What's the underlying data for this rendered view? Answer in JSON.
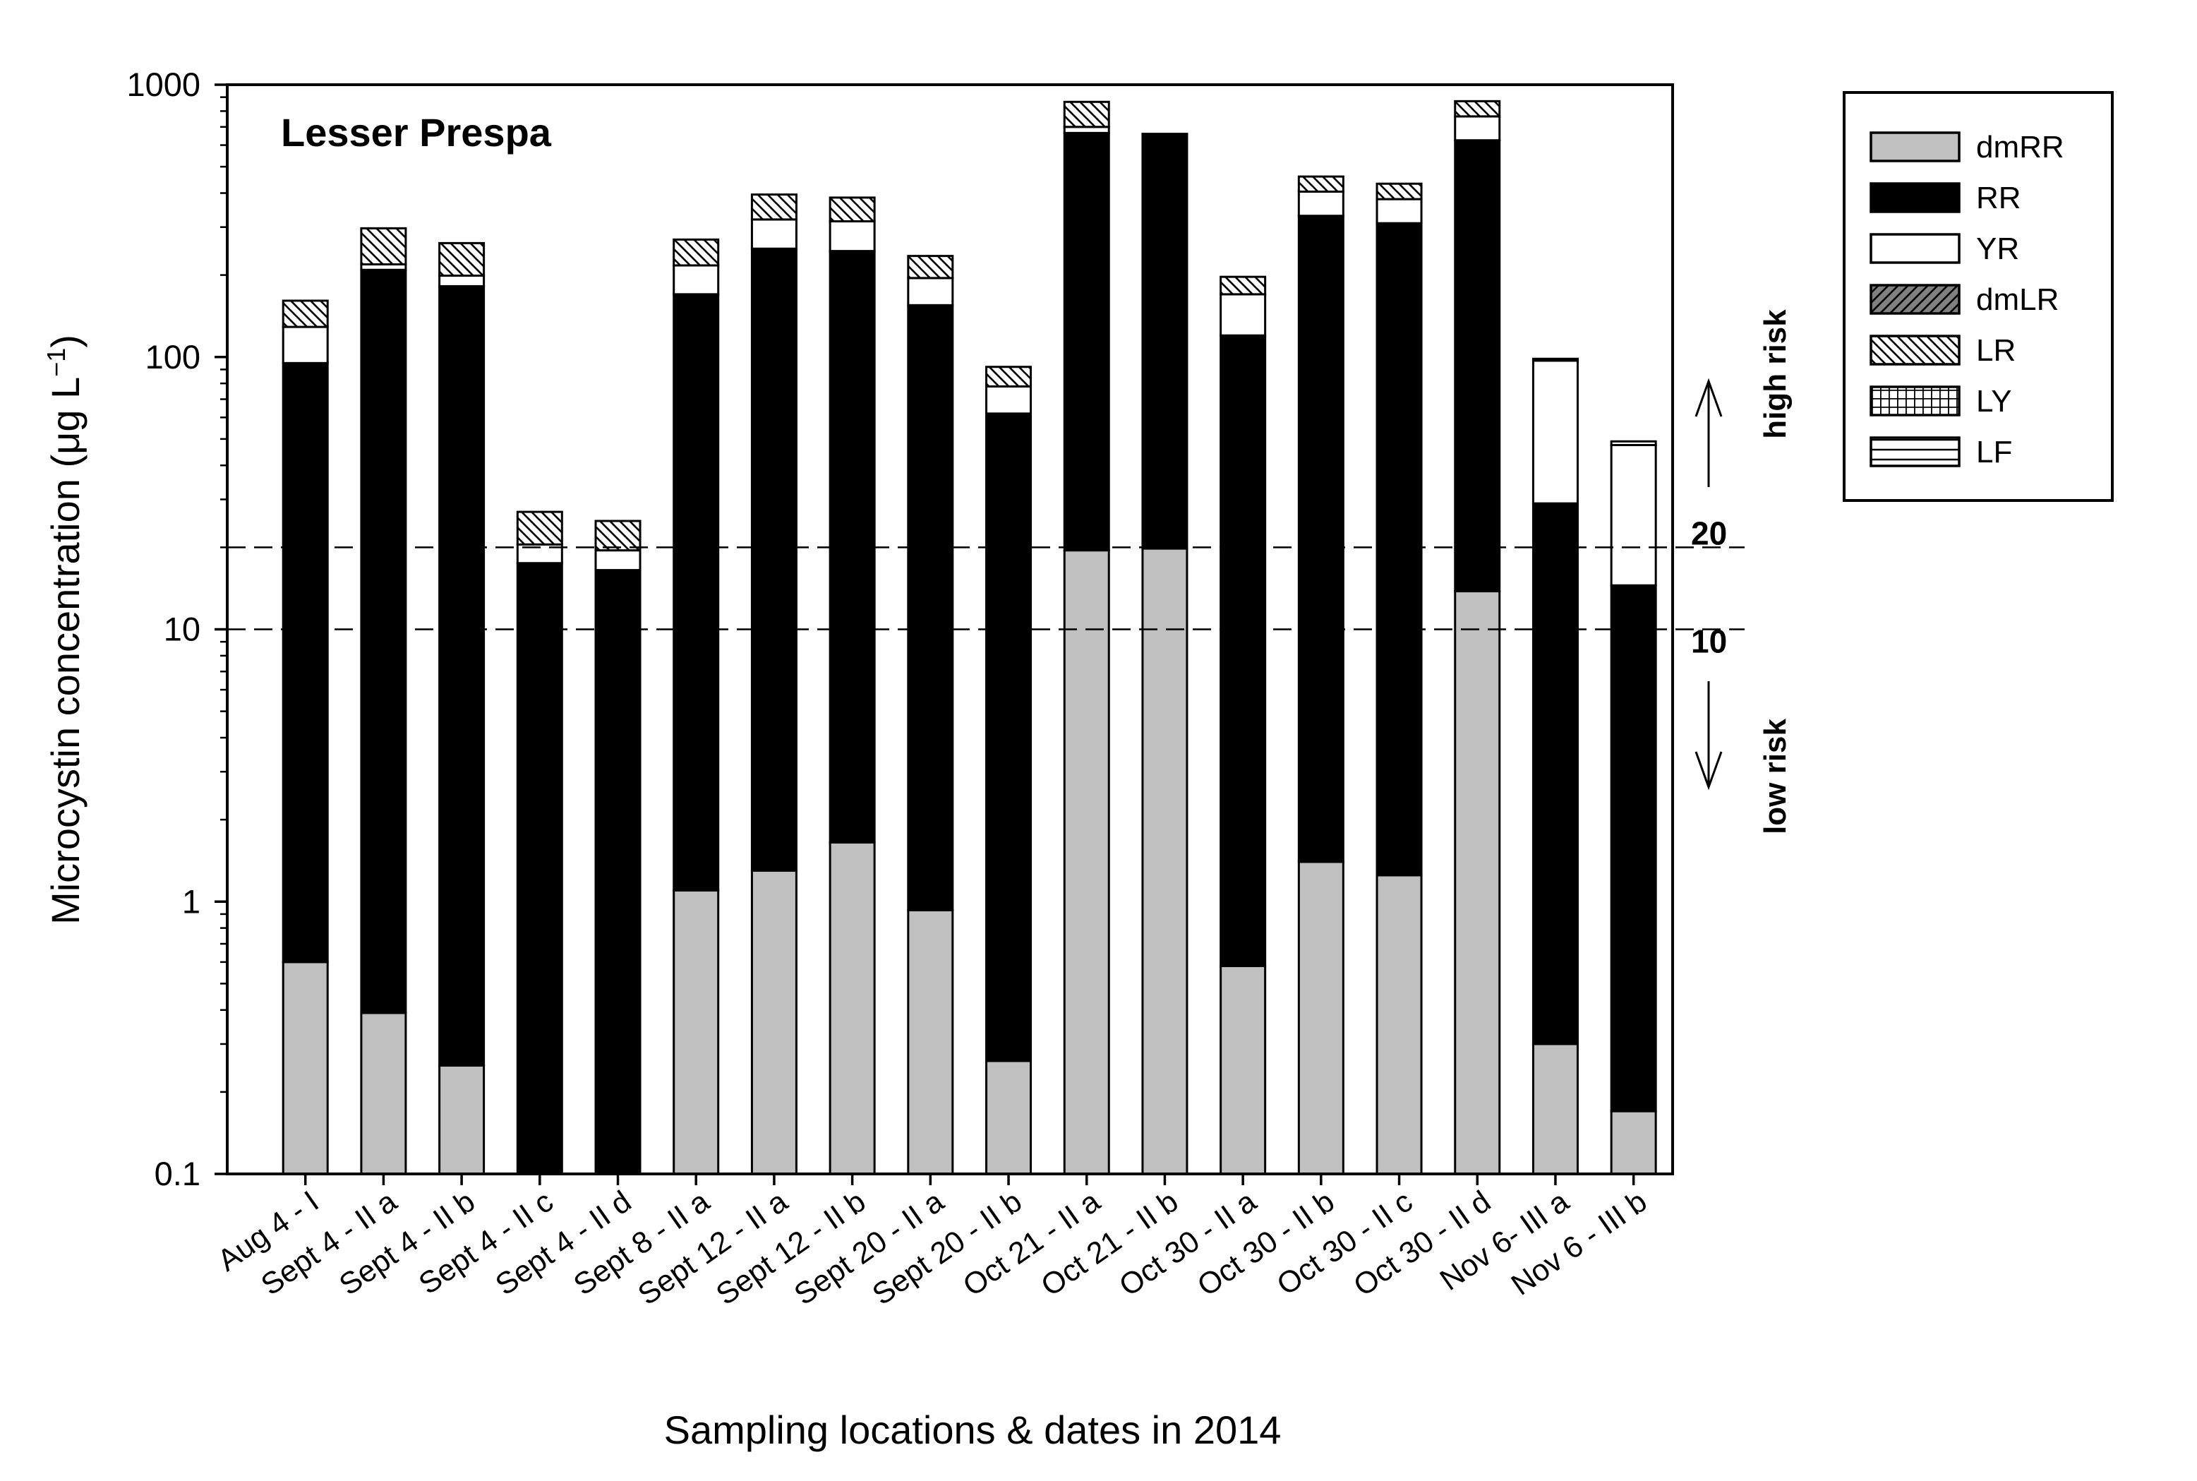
{
  "chart_data": {
    "type": "bar",
    "stacked": true,
    "title": "Lesser Prespa",
    "xlabel": "Sampling locations & dates in 2014",
    "ylabel": "Microcystin concentration (μg L⁻¹)",
    "yscale": "log",
    "ylim": [
      0.1,
      1000
    ],
    "yticks": [
      {
        "value": 0.1,
        "label": "0.1"
      },
      {
        "value": 1,
        "label": "1"
      },
      {
        "value": 10,
        "label": "10"
      },
      {
        "value": 100,
        "label": "100"
      },
      {
        "value": 1000,
        "label": "1000"
      }
    ],
    "categories": [
      "Aug 4 - I",
      "Sept 4 - II a",
      "Sept 4 - II b",
      "Sept 4 - II c",
      "Sept 4 - II d",
      "Sept 8 - II a",
      "Sept 12 - II a",
      "Sept 12 - II b",
      "Sept 20 - II a",
      "Sept 20 - II b",
      "Oct 21 - II a",
      "Oct 21 - II b",
      "Oct 30 - II a",
      "Oct 30 - II b",
      "Oct 30 - II c",
      "Oct 30 - II d",
      "Nov 6- III a",
      "Nov 6 - III b"
    ],
    "series": [
      {
        "name": "dmRR",
        "color": "#c0c0c0",
        "values": [
          0.6,
          0.39,
          0.25,
          0,
          0,
          1.1,
          1.3,
          1.65,
          0.93,
          0.26,
          19.5,
          19.8,
          0.58,
          1.4,
          1.25,
          13.8,
          0.3,
          0.17
        ]
      },
      {
        "name": "RR",
        "color": "#000000",
        "values": [
          94.4,
          208.6,
          181.75,
          17.5,
          16.5,
          168.9,
          248.7,
          243.35,
          154.07,
          61.74,
          645.5,
          640.2,
          119.42,
          328.6,
          308.75,
          611.2,
          28.7,
          14.33
        ]
      },
      {
        "name": "YR",
        "color": "#ffffff",
        "values": [
          34,
          10,
          17,
          3,
          3,
          47,
          70,
          70,
          40,
          16,
          35,
          0,
          50,
          75,
          70,
          140,
          68,
          33
        ]
      },
      {
        "name": "dmLR",
        "color": "#808080",
        "values": [
          0,
          0,
          0,
          0,
          0,
          0,
          0,
          0,
          0,
          0,
          0,
          0,
          0,
          0,
          0,
          0,
          0,
          0
        ]
      },
      {
        "name": "LR",
        "color": "#ffffff",
        "values": [
          32,
          78,
          63,
          6.5,
          5.5,
          53,
          75,
          70,
          40,
          14,
          165,
          0,
          27,
          55,
          53,
          105,
          0,
          0
        ]
      },
      {
        "name": "LY",
        "color": "#ffffff",
        "values": [
          0,
          0,
          0,
          0,
          0,
          0,
          0,
          0,
          0,
          0,
          0,
          0,
          0,
          0,
          0,
          0,
          0,
          0
        ]
      },
      {
        "name": "LF",
        "color": "#ffffff",
        "values": [
          0,
          0,
          0,
          0,
          0,
          0,
          0,
          0,
          0,
          0,
          0,
          0,
          0,
          0,
          0,
          0,
          1.5,
          1.5
        ]
      }
    ],
    "thresholds": [
      {
        "value": 20,
        "label": "20"
      },
      {
        "value": 10,
        "label": "10"
      }
    ],
    "annotations": {
      "high_risk": "high risk",
      "low_risk": "low risk"
    },
    "legend_position": "right"
  }
}
